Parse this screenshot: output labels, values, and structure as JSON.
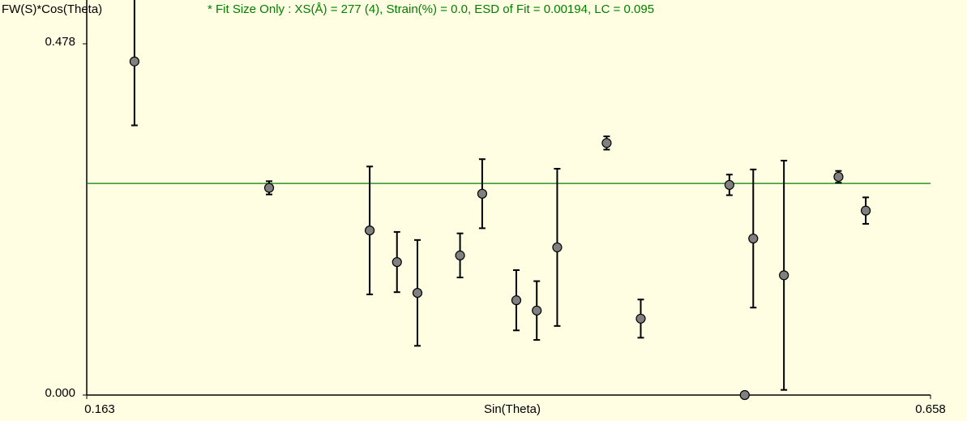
{
  "chart_data": {
    "type": "scatter",
    "y_label": "FW(S)*Cos(Theta)",
    "x_label": "Sin(Theta)",
    "annotation": "* Fit Size Only : XS(Å) = 277 (4), Strain(%) = 0.0, ESD of Fit = 0.00194, LC = 0.095",
    "xlim": [
      0.163,
      0.658
    ],
    "xticks": [
      0.163,
      0.658
    ],
    "ylim": [
      0,
      0.478
    ],
    "yticks": [
      {
        "value": 0,
        "label": "0.000"
      },
      0.478
    ],
    "fit_line": {
      "value": 0.288,
      "color": "#008000"
    },
    "series": [
      {
        "color": "#808080",
        "x": [
          0.191,
          0.27,
          0.329,
          0.345,
          0.357,
          0.382,
          0.395,
          0.415,
          0.427,
          0.439,
          0.468,
          0.488,
          0.54,
          0.549,
          0.554,
          0.572,
          0.604,
          0.62
        ],
        "values": [
          0.454,
          0.282,
          0.224,
          0.181,
          0.139,
          0.19,
          0.274,
          0.129,
          0.115,
          0.201,
          0.343,
          0.104,
          0.286,
          0,
          0.213,
          0.163,
          0.297,
          0.251
        ],
        "errors": [
          0.087,
          0.009,
          0.087,
          0.041,
          0.072,
          0.03,
          0.047,
          0.041,
          0.04,
          0.107,
          0.009,
          0.026,
          0.014,
          null,
          0.094,
          0.156,
          0.008,
          0.018
        ]
      }
    ]
  }
}
